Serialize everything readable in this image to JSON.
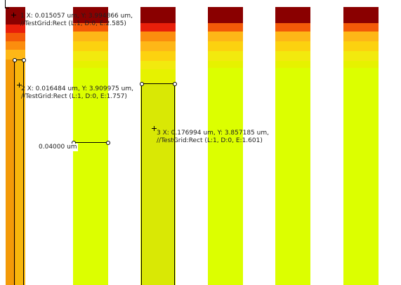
{
  "palette": {
    "dark": "#8a0000",
    "red": "#e81f0a",
    "orange_red": "#f35a08",
    "orange": "#fb8d0e",
    "amber": "#feb717",
    "yellow_orange": "#fcd20f",
    "yellow": "#f2ea0e",
    "lime": "#dcff00",
    "bright_lime": "#e6ff00",
    "olive_lime": "#d9e805"
  },
  "probes": [
    {
      "id": "1",
      "line1": "1 X: 0.015057 um, Y: 3.994866 um,",
      "line2": "//TestGrid:Rect (L:1, D:0, E:2.585)"
    },
    {
      "id": "2",
      "line1": "2 X: 0.016484 um, Y: 3.909975 um,",
      "line2": "//TestGrid:Rect (L:1, D:0, E:1.757)"
    },
    {
      "id": "3",
      "line1": "3 X: 0.176994 um, Y: 3.857185 um,",
      "line2": "//TestGrid:Rect (L:1, D:0, E:1.601)"
    }
  ],
  "ruler": {
    "label": "0.04000 um"
  }
}
